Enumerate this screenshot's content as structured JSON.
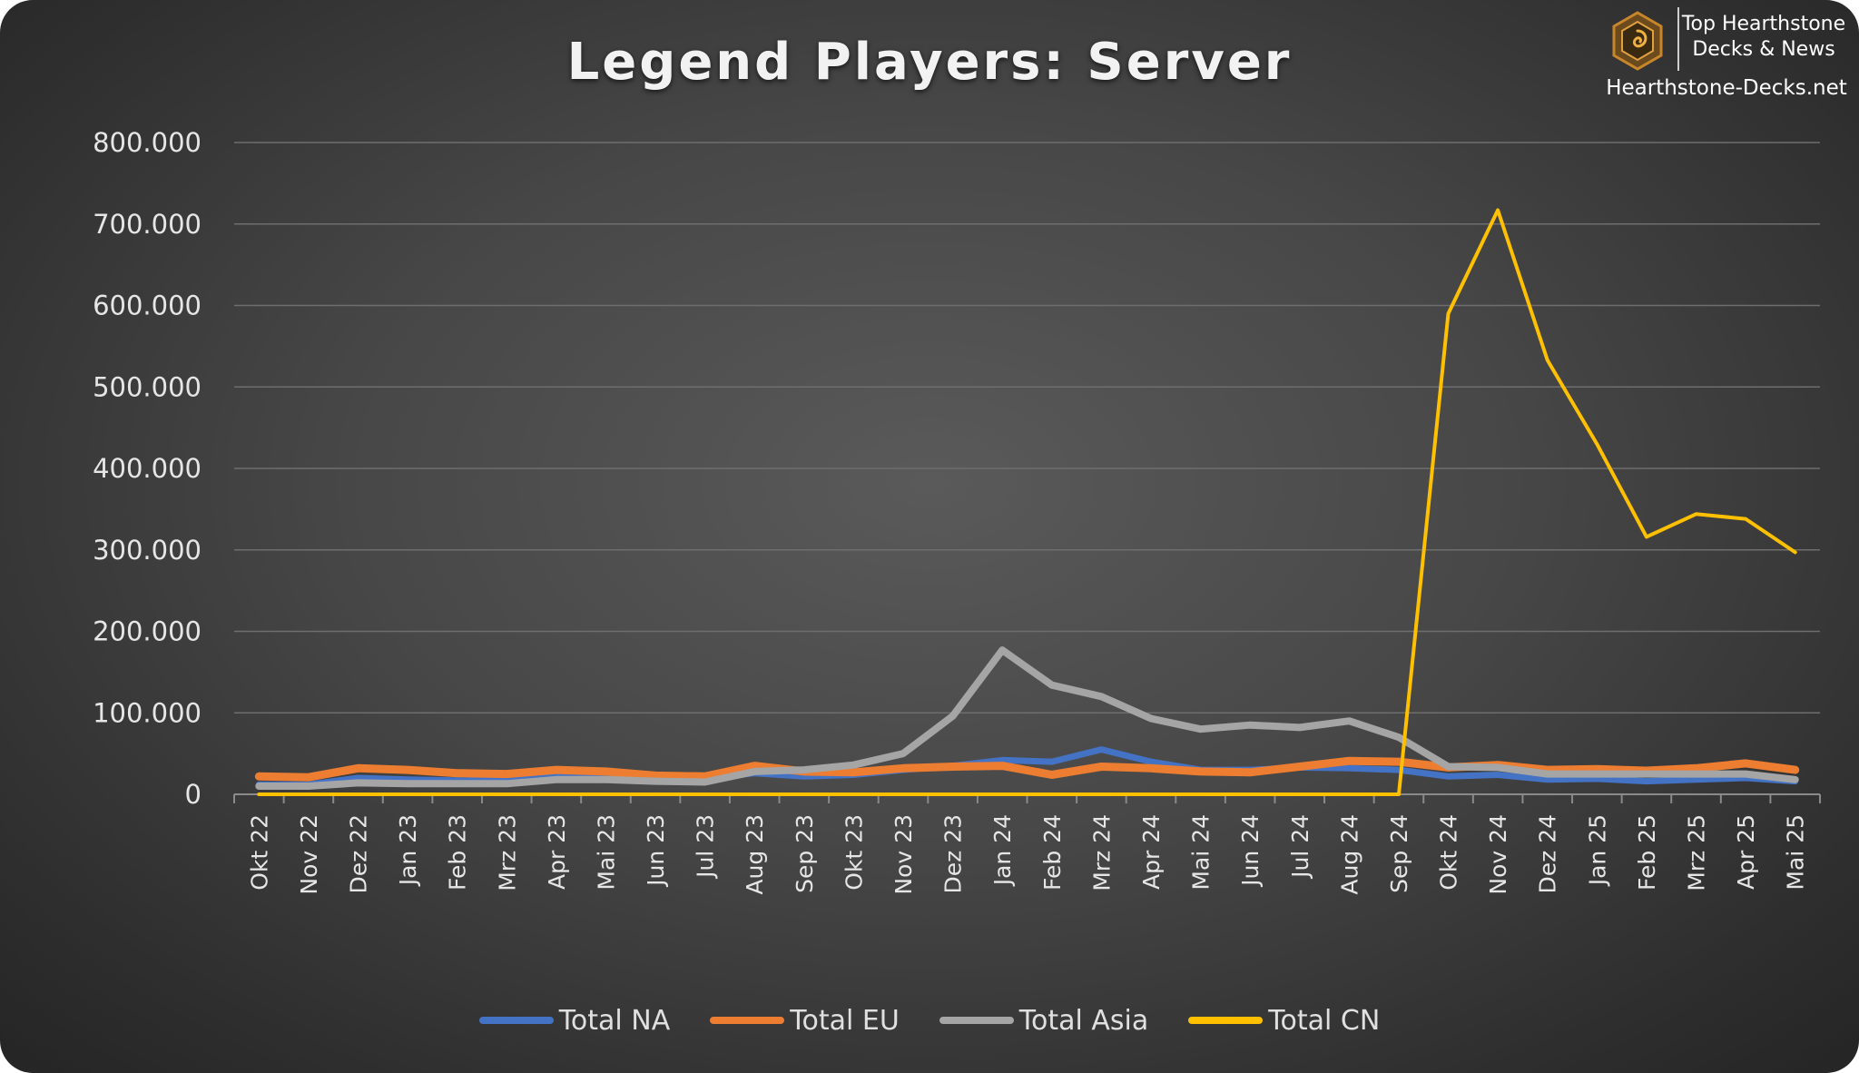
{
  "chart_data": {
    "type": "line",
    "title": "Legend Players: Server",
    "xlabel": "",
    "ylabel": "",
    "ylim": [
      0,
      800000
    ],
    "yticks": [
      "0",
      "100.000",
      "200.000",
      "300.000",
      "400.000",
      "500.000",
      "600.000",
      "700.000",
      "800.000"
    ],
    "grid": true,
    "legend_position": "bottom",
    "categories": [
      "Okt 22",
      "Nov 22",
      "Dez 22",
      "Jan 23",
      "Feb 23",
      "Mrz 23",
      "Apr 23",
      "Mai 23",
      "Jun 23",
      "Jul 23",
      "Aug 23",
      "Sep 23",
      "Okt 23",
      "Nov 23",
      "Dez 23",
      "Jan 24",
      "Feb 24",
      "Mrz 24",
      "Apr 24",
      "Mai 24",
      "Jun 24",
      "Jul 24",
      "Aug 24",
      "Sep 24",
      "Okt 24",
      "Nov 24",
      "Dez 24",
      "Jan 25",
      "Feb 25",
      "Mrz 25",
      "Apr 25",
      "Mai 25"
    ],
    "series": [
      {
        "name": "Total NA",
        "color": "#4472c4",
        "values": [
          12000,
          12000,
          20000,
          18000,
          17000,
          17000,
          22000,
          22000,
          20000,
          19000,
          26000,
          22000,
          24000,
          30000,
          35000,
          42000,
          40000,
          55000,
          40000,
          30000,
          30000,
          33000,
          32000,
          30000,
          22000,
          24000,
          18000,
          19000,
          16000,
          18000,
          20000,
          16000
        ]
      },
      {
        "name": "Total EU",
        "color": "#ed7d31",
        "values": [
          22000,
          21000,
          32000,
          30000,
          26000,
          25000,
          30000,
          28000,
          23000,
          22000,
          35000,
          28000,
          27000,
          32000,
          34000,
          35000,
          24000,
          34000,
          32000,
          28000,
          27000,
          34000,
          41000,
          40000,
          33000,
          36000,
          30000,
          31000,
          29000,
          32000,
          38000,
          30000
        ]
      },
      {
        "name": "Total Asia",
        "color": "#a5a5a5",
        "values": [
          10000,
          10000,
          14000,
          13000,
          13000,
          13000,
          18000,
          18000,
          16000,
          15000,
          28000,
          30000,
          36000,
          50000,
          96000,
          177000,
          134000,
          120000,
          93000,
          80000,
          85000,
          82000,
          90000,
          70000,
          34000,
          33000,
          25000,
          25000,
          25000,
          25000,
          25000,
          18000
        ]
      },
      {
        "name": "Total CN",
        "color": "#ffc000",
        "values": [
          0,
          0,
          0,
          0,
          0,
          0,
          0,
          0,
          0,
          0,
          0,
          0,
          0,
          0,
          0,
          0,
          0,
          0,
          0,
          0,
          0,
          0,
          0,
          0,
          590000,
          717000,
          533000,
          430000,
          316000,
          344000,
          338000,
          297000
        ]
      }
    ]
  },
  "brand": {
    "line1": "Top Hearthstone",
    "line2": "Decks & News",
    "site": "Hearthstone-Decks.net",
    "logo_color": "#c8862a"
  }
}
